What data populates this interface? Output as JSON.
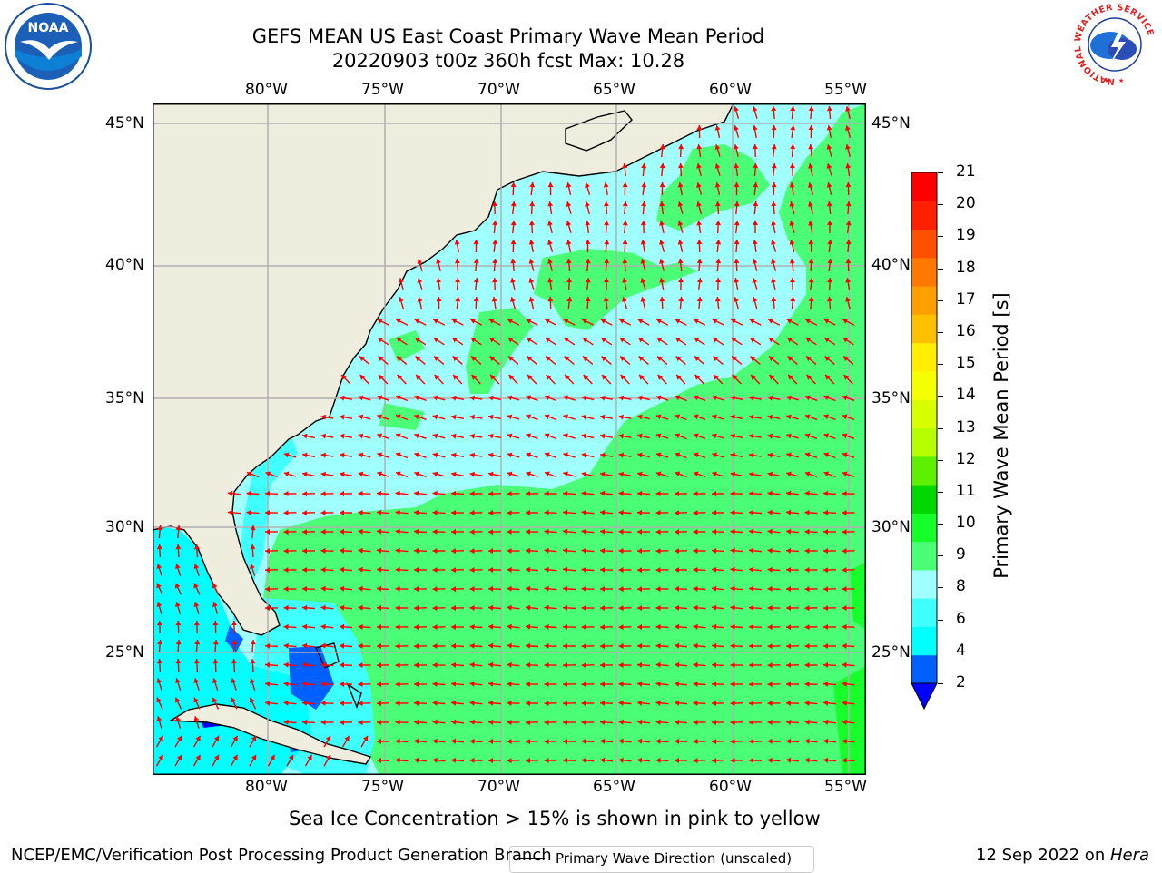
{
  "title": {
    "line1": "GEFS MEAN US East Coast Primary Wave Mean Period",
    "line2": "20220903 t00z 360h fcst   Max: 10.28"
  },
  "logos": {
    "noaa": "NOAA",
    "nws_ring": "NATIONAL WEATHER SERVICE"
  },
  "map": {
    "lon_ticks": [
      "80°W",
      "75°W",
      "70°W",
      "65°W",
      "60°W",
      "55°W"
    ],
    "lat_ticks": [
      "45°N",
      "40°N",
      "35°N",
      "30°N",
      "25°N"
    ],
    "legend_label": "Primary Wave Direction (unscaled)",
    "arrow_color": "#ff0000",
    "land_color": "#efedde",
    "grid": true,
    "direction_field": "mostly westward south of 36°N, northward/north-west north of 37°N"
  },
  "colorbar": {
    "label": "Primary Wave Mean Period [s]",
    "ticks": [
      "2",
      "4",
      "6",
      "8",
      "9",
      "10",
      "11",
      "12",
      "13",
      "14",
      "15",
      "16",
      "17",
      "18",
      "19",
      "20",
      "21"
    ],
    "colors": [
      "#0060ff",
      "#00ffff",
      "#40ffff",
      "#a0ffff",
      "#4aff75",
      "#17ff2b",
      "#00d800",
      "#5ef000",
      "#b5ff00",
      "#d8ff00",
      "#f5ff00",
      "#ffee00",
      "#ffc000",
      "#ffa000",
      "#ff7800",
      "#ff5000",
      "#ff2000",
      "#ff0000"
    ],
    "extend_color": "#0000ff"
  },
  "subtitle": "Sea Ice Concentration > 15% is shown in pink to yellow",
  "footer": {
    "left": "NCEP/EMC/Verification Post Processing Product Generation Branch",
    "right_date": "12 Sep 2022 on ",
    "right_machine": "Hera"
  }
}
